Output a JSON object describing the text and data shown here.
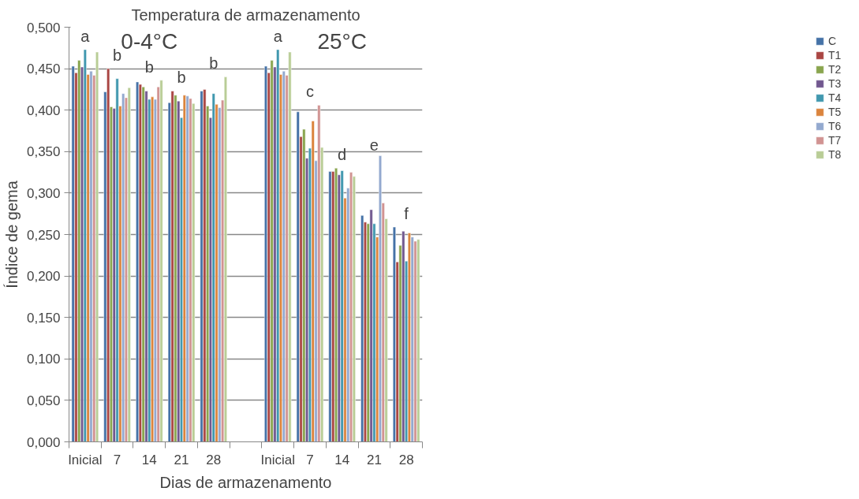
{
  "chart_data": {
    "type": "bar",
    "title": "Temperatura de armazenamento",
    "xlabel": "Dias de armazenamento",
    "ylabel": "Índice de gema",
    "categories": [
      "Inicial",
      "7",
      "14",
      "21",
      "28",
      null,
      "Inicial",
      "7",
      "14",
      "21",
      "28"
    ],
    "series": [
      {
        "name": "C",
        "color": "#4572a7",
        "values": [
          0.453,
          0.422,
          0.434,
          0.409,
          0.423,
          null,
          0.453,
          0.398,
          0.326,
          0.273,
          0.259
        ]
      },
      {
        "name": "T1",
        "color": "#aa4643",
        "values": [
          0.445,
          0.45,
          0.431,
          0.423,
          0.425,
          null,
          0.445,
          0.368,
          0.326,
          0.265,
          0.217
        ]
      },
      {
        "name": "T2",
        "color": "#89a54e",
        "values": [
          0.46,
          0.404,
          0.428,
          0.418,
          0.405,
          null,
          0.46,
          0.377,
          0.33,
          0.263,
          0.237
        ]
      },
      {
        "name": "T3",
        "color": "#71588f",
        "values": [
          0.452,
          0.402,
          0.423,
          0.411,
          0.391,
          null,
          0.452,
          0.342,
          0.322,
          0.28,
          0.254
        ]
      },
      {
        "name": "T4",
        "color": "#4198af",
        "values": [
          0.473,
          0.438,
          0.413,
          0.391,
          0.42,
          null,
          0.473,
          0.354,
          0.327,
          0.263,
          0.218
        ]
      },
      {
        "name": "T5",
        "color": "#db843d",
        "values": [
          0.443,
          0.405,
          0.416,
          0.418,
          0.407,
          null,
          0.443,
          0.387,
          0.294,
          0.247,
          0.252
        ]
      },
      {
        "name": "T6",
        "color": "#93a9cf",
        "values": [
          0.447,
          0.42,
          0.413,
          0.417,
          0.403,
          null,
          0.447,
          0.339,
          0.306,
          0.345,
          0.247
        ]
      },
      {
        "name": "T7",
        "color": "#d19392",
        "values": [
          0.442,
          0.415,
          0.428,
          0.414,
          0.412,
          null,
          0.442,
          0.406,
          0.325,
          0.288,
          0.242
        ]
      },
      {
        "name": "T8",
        "color": "#b9cd96",
        "values": [
          0.47,
          0.427,
          0.436,
          0.408,
          0.44,
          null,
          0.47,
          0.355,
          0.32,
          0.269,
          0.244
        ]
      }
    ],
    "ylim": [
      0,
      0.5
    ],
    "yticks": [
      {
        "value": 0,
        "label": "0,000"
      },
      {
        "value": 0.05,
        "label": "0,050"
      },
      {
        "value": 0.1,
        "label": "0,100"
      },
      {
        "value": 0.15,
        "label": "0,150"
      },
      {
        "value": 0.2,
        "label": "0,200"
      },
      {
        "value": 0.25,
        "label": "0,250"
      },
      {
        "value": 0.3,
        "label": "0,300"
      },
      {
        "value": 0.35,
        "label": "0,350"
      },
      {
        "value": 0.4,
        "label": "0,400"
      },
      {
        "value": 0.45,
        "label": "0,450"
      },
      {
        "value": 0.5,
        "label": "0,500"
      }
    ],
    "grid": "y",
    "legend": "right",
    "annotations": [
      "0-4°C",
      "25°C",
      "a",
      "b",
      "b",
      "b",
      "b",
      "a",
      "c",
      "d",
      "e",
      "f"
    ]
  }
}
